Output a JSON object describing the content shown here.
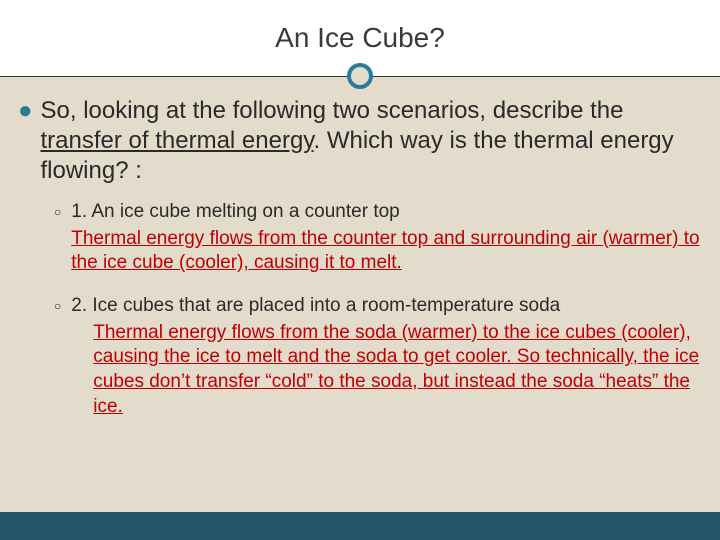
{
  "colors": {
    "background": "#e3dccc",
    "title_band": "#ffffff",
    "circle_border": "#2b7a99",
    "bottom_bar": "#27566b",
    "main_text": "#2a2a2a",
    "answer_text": "#c00000",
    "bullet_accent": "#2b7a99"
  },
  "typography": {
    "title_fontsize": 28,
    "main_fontsize": 24,
    "sub_fontsize": 19,
    "font_family": "Verdana"
  },
  "title": "An Ice Cube?",
  "main_prompt_pre": "So, looking at the following two scenarios, describe the ",
  "main_prompt_underlined": "transfer of thermal energy",
  "main_prompt_post": ". Which way is the thermal energy flowing? :",
  "scenarios": [
    {
      "question": "1. An ice cube melting on a counter top",
      "answer": "Thermal energy flows from the counter top and surrounding air (warmer) to the ice cube (cooler), causing it to melt."
    },
    {
      "question": "2. Ice cubes that are placed into a room-temperature soda",
      "answer": "Thermal energy flows from the soda (warmer) to the ice cubes (cooler), causing the ice to melt and the soda to get cooler. So technically, the ice cubes don’t transfer “cold” to the soda, but instead the soda “heats” the ice."
    }
  ]
}
